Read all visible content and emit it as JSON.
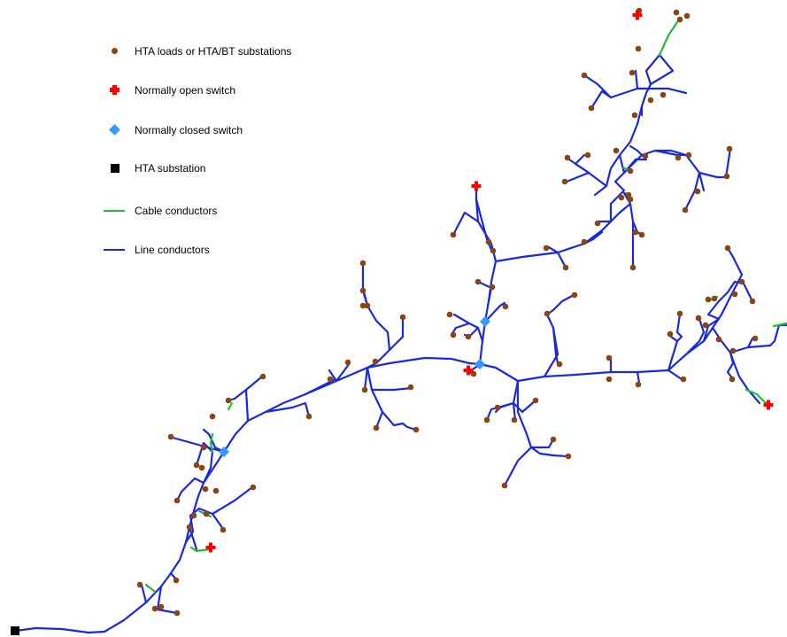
{
  "legend": {
    "items": [
      {
        "label": "HTA loads or HTA/BT substations",
        "symbol": "load"
      },
      {
        "label": "Normally open switch",
        "symbol": "open"
      },
      {
        "label": "Normally closed switch",
        "symbol": "closed"
      },
      {
        "label": "HTA substation",
        "symbol": "hta"
      },
      {
        "label": "Cable conductors",
        "symbol": "cable"
      },
      {
        "label": "Line conductors",
        "symbol": "line"
      }
    ]
  },
  "colors": {
    "line": "#1a28e0",
    "cable": "#22bb33",
    "load": "#8b4513",
    "open_switch": "#ff0000",
    "closed_switch": "#3399ff",
    "hta_substation": "#000000"
  }
}
